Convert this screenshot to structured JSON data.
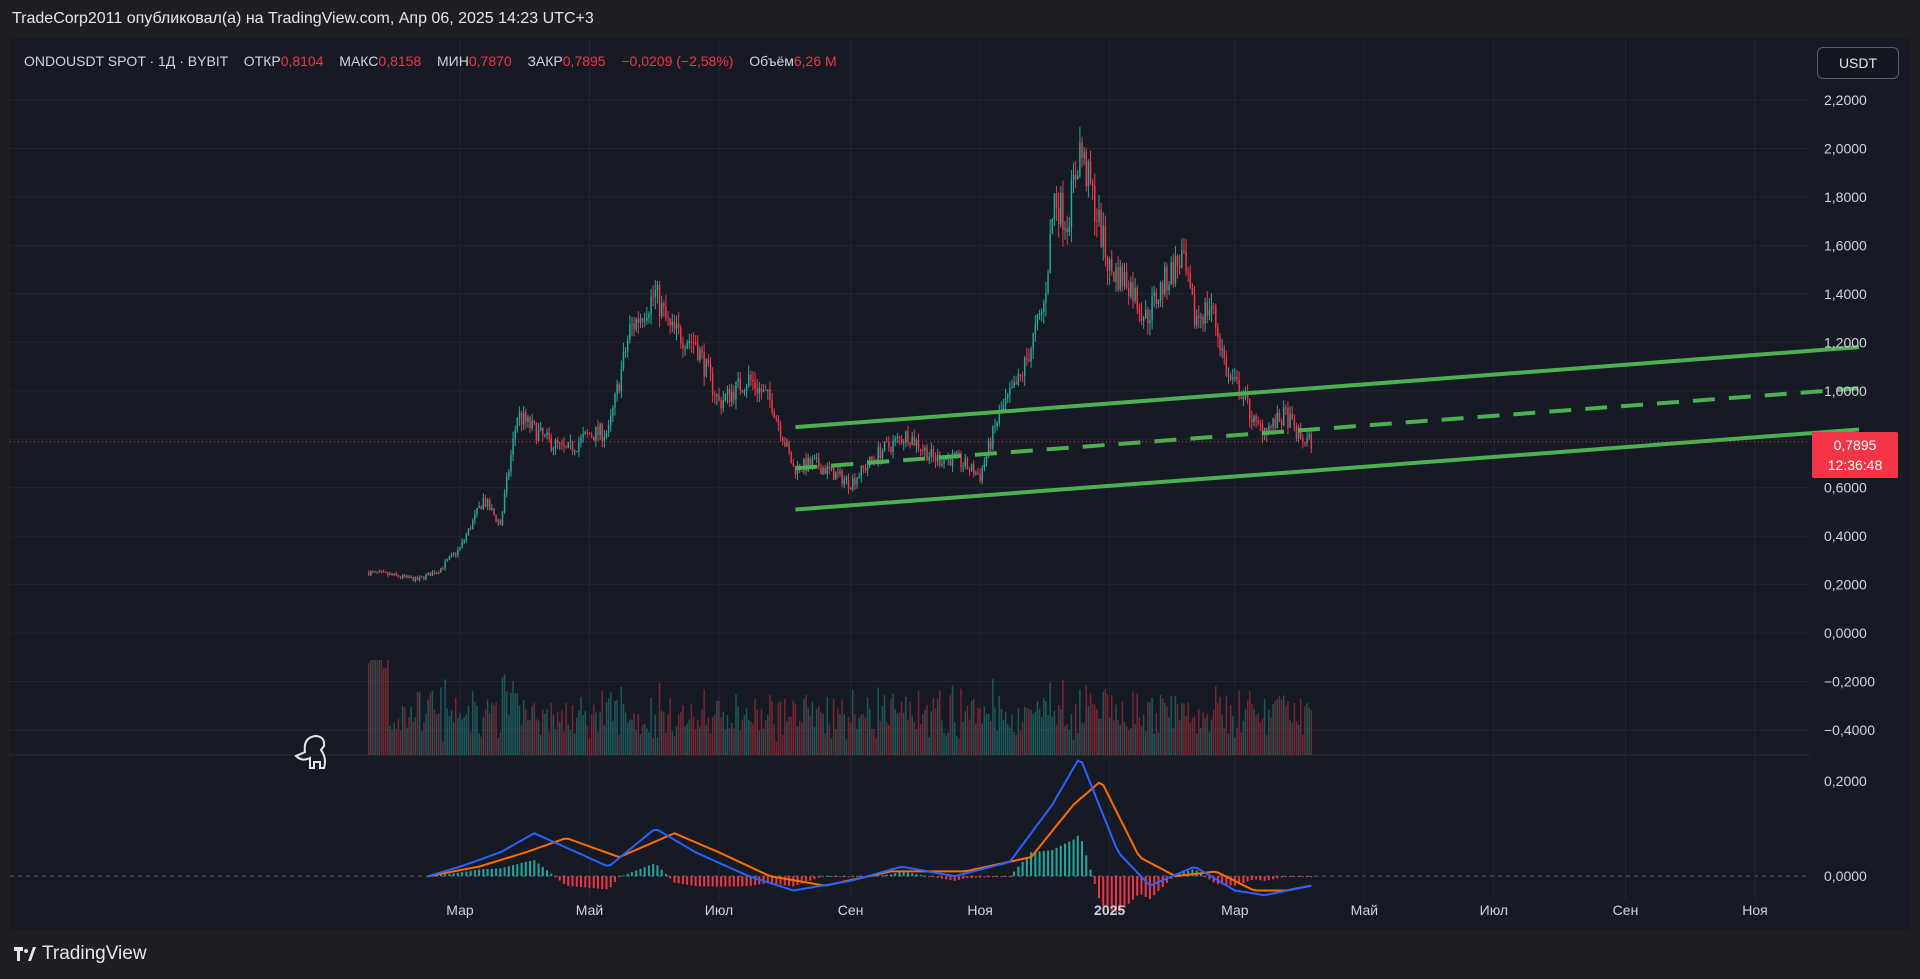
{
  "header": {
    "text": "TradeCorp2011 опубликовал(а) на TradingView.com, Апр 06, 2025 14:23 UTC+3"
  },
  "legend": {
    "symbol": "ONDOUSDT SPOT · 1Д · BYBIT",
    "open_label": "ОТКР",
    "open_value": "0,8104",
    "high_label": "МАКС",
    "high_value": "0,8158",
    "low_label": "МИН",
    "low_value": "0,7870",
    "close_label": "ЗАКР",
    "close_value": "0,7895",
    "change": "−0,0209 (−2,58%)",
    "volume_label": "Объём",
    "volume_value": "6,26 M"
  },
  "currency_button": "USDT",
  "price_label": {
    "price": "0,7895",
    "countdown": "12:36:48"
  },
  "footer": {
    "brand": "TradingView"
  },
  "colors": {
    "up": "#26a69a",
    "down": "#f23645",
    "channel": "#4caf50",
    "macd": "#2962ff",
    "signal": "#ff6d00",
    "background": "#161a25"
  },
  "chart_data": [
    {
      "type": "candlestick",
      "symbol": "ONDOUSDT",
      "interval": "1D",
      "y_ticks": [
        "2,2000",
        "2,0000",
        "1,8000",
        "1,6000",
        "1,4000",
        "1,2000",
        "1,0000",
        "0,8000",
        "0,6000",
        "0,4000",
        "0,2000",
        "0,0000",
        "−0,2000",
        "−0,4000"
      ],
      "ylim": [
        -0.4,
        2.2
      ],
      "x_ticks": [
        {
          "label": "Мар",
          "date": "2024-03-01"
        },
        {
          "label": "Май",
          "date": "2024-05-01"
        },
        {
          "label": "Июл",
          "date": "2024-07-01"
        },
        {
          "label": "Сен",
          "date": "2024-09-01"
        },
        {
          "label": "Ноя",
          "date": "2024-11-01"
        },
        {
          "label": "2025",
          "date": "2025-01-01"
        },
        {
          "label": "Мар",
          "date": "2025-03-01"
        },
        {
          "label": "Май",
          "date": "2025-05-01"
        },
        {
          "label": "Июл",
          "date": "2025-07-01"
        },
        {
          "label": "Сен",
          "date": "2025-09-01"
        },
        {
          "label": "Ноя",
          "date": "2025-11-01"
        }
      ],
      "price_path": [
        [
          "2024-01-18",
          0.25
        ],
        [
          "2024-01-28",
          0.24
        ],
        [
          "2024-02-10",
          0.22
        ],
        [
          "2024-02-20",
          0.26
        ],
        [
          "2024-03-01",
          0.35
        ],
        [
          "2024-03-12",
          0.55
        ],
        [
          "2024-03-20",
          0.45
        ],
        [
          "2024-03-28",
          0.9
        ],
        [
          "2024-04-10",
          0.8
        ],
        [
          "2024-04-20",
          0.75
        ],
        [
          "2024-05-01",
          0.82
        ],
        [
          "2024-05-10",
          0.83
        ],
        [
          "2024-05-20",
          1.25
        ],
        [
          "2024-06-01",
          1.4
        ],
        [
          "2024-06-08",
          1.25
        ],
        [
          "2024-06-20",
          1.2
        ],
        [
          "2024-07-01",
          0.95
        ],
        [
          "2024-07-15",
          1.05
        ],
        [
          "2024-07-26",
          0.95
        ],
        [
          "2024-08-05",
          0.68
        ],
        [
          "2024-08-15",
          0.7
        ],
        [
          "2024-09-01",
          0.62
        ],
        [
          "2024-09-15",
          0.75
        ],
        [
          "2024-09-28",
          0.82
        ],
        [
          "2024-10-10",
          0.72
        ],
        [
          "2024-10-20",
          0.72
        ],
        [
          "2024-11-01",
          0.65
        ],
        [
          "2024-11-10",
          0.9
        ],
        [
          "2024-11-20",
          1.05
        ],
        [
          "2024-12-01",
          1.35
        ],
        [
          "2024-12-06",
          1.8
        ],
        [
          "2024-12-12",
          1.7
        ],
        [
          "2024-12-18",
          2.0
        ],
        [
          "2024-12-24",
          1.8
        ],
        [
          "2025-01-01",
          1.5
        ],
        [
          "2025-01-10",
          1.45
        ],
        [
          "2025-01-18",
          1.3
        ],
        [
          "2025-01-27",
          1.45
        ],
        [
          "2025-02-04",
          1.55
        ],
        [
          "2025-02-10",
          1.3
        ],
        [
          "2025-02-18",
          1.35
        ],
        [
          "2025-02-26",
          1.05
        ],
        [
          "2025-03-04",
          1.0
        ],
        [
          "2025-03-11",
          0.85
        ],
        [
          "2025-03-18",
          0.85
        ],
        [
          "2025-03-25",
          0.9
        ],
        [
          "2025-04-01",
          0.8
        ],
        [
          "2025-04-06",
          0.79
        ]
      ],
      "last_price": 0.7895,
      "channel": {
        "upper": [
          [
            "2024-08-06",
            0.85
          ],
          [
            "2025-12-20",
            1.18
          ]
        ],
        "lower": [
          [
            "2024-08-06",
            0.51
          ],
          [
            "2025-12-20",
            0.84
          ]
        ],
        "mid": [
          [
            "2024-08-06",
            0.68
          ],
          [
            "2025-12-20",
            1.01
          ]
        ]
      },
      "volume": "histogram, bottom of price pane"
    },
    {
      "type": "line",
      "name": "MACD",
      "y_ticks": [
        "0,2000",
        "0,0000"
      ],
      "ylim": [
        -0.05,
        0.25
      ],
      "series": [
        {
          "name": "MACD",
          "color": "#2962ff",
          "values": [
            [
              "2024-02-15",
              0.0
            ],
            [
              "2024-03-01",
              0.02
            ],
            [
              "2024-03-20",
              0.05
            ],
            [
              "2024-04-05",
              0.09
            ],
            [
              "2024-04-20",
              0.06
            ],
            [
              "2024-05-10",
              0.02
            ],
            [
              "2024-06-01",
              0.1
            ],
            [
              "2024-06-20",
              0.05
            ],
            [
              "2024-07-15",
              0.0
            ],
            [
              "2024-08-05",
              -0.03
            ],
            [
              "2024-09-01",
              -0.01
            ],
            [
              "2024-09-25",
              0.02
            ],
            [
              "2024-10-20",
              0.0
            ],
            [
              "2024-11-15",
              0.03
            ],
            [
              "2024-12-05",
              0.15
            ],
            [
              "2024-12-18",
              0.25
            ],
            [
              "2025-01-05",
              0.05
            ],
            [
              "2025-01-20",
              -0.02
            ],
            [
              "2025-02-10",
              0.02
            ],
            [
              "2025-03-01",
              -0.03
            ],
            [
              "2025-03-15",
              -0.04
            ],
            [
              "2025-04-06",
              -0.02
            ]
          ]
        },
        {
          "name": "Signal",
          "color": "#ff6d00",
          "values": [
            [
              "2024-02-15",
              0.0
            ],
            [
              "2024-03-10",
              0.02
            ],
            [
              "2024-04-01",
              0.05
            ],
            [
              "2024-04-20",
              0.08
            ],
            [
              "2024-05-15",
              0.04
            ],
            [
              "2024-06-10",
              0.09
            ],
            [
              "2024-07-01",
              0.05
            ],
            [
              "2024-07-25",
              0.0
            ],
            [
              "2024-08-20",
              -0.02
            ],
            [
              "2024-09-20",
              0.01
            ],
            [
              "2024-10-25",
              0.01
            ],
            [
              "2024-11-25",
              0.04
            ],
            [
              "2024-12-15",
              0.15
            ],
            [
              "2024-12-28",
              0.2
            ],
            [
              "2025-01-15",
              0.04
            ],
            [
              "2025-02-01",
              0.0
            ],
            [
              "2025-02-20",
              0.01
            ],
            [
              "2025-03-10",
              -0.03
            ],
            [
              "2025-03-25",
              -0.03
            ],
            [
              "2025-04-06",
              -0.02
            ]
          ]
        }
      ]
    }
  ]
}
